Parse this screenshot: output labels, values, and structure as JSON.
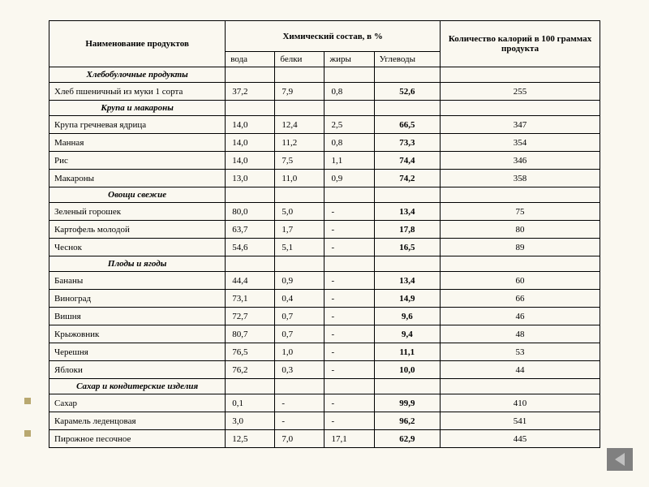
{
  "headers": {
    "col1": "Наименование продуктов",
    "col2": "Химический состав, в %",
    "col3": "Количество калорий в 100 граммах продукта",
    "sub1": "вода",
    "sub2": "белки",
    "sub3": "жиры",
    "sub4": "Углеводы"
  },
  "categories": [
    {
      "name": "Хлебобулочные продукты",
      "rows": [
        {
          "name": "Хлеб пшеничный из муки 1 сорта",
          "water": "37,2",
          "protein": "7,9",
          "fat": "0,8",
          "carbs": "52,6",
          "cal": "255"
        }
      ]
    },
    {
      "name": "Крупа и макароны",
      "rows": [
        {
          "name": "Крупа гречневая ядрица",
          "water": "14,0",
          "protein": "12,4",
          "fat": "2,5",
          "carbs": "66,5",
          "cal": "347"
        },
        {
          "name": "Манная",
          "water": "14,0",
          "protein": "11,2",
          "fat": "0,8",
          "carbs": "73,3",
          "cal": "354"
        },
        {
          "name": "Рис",
          "water": "14,0",
          "protein": "7,5",
          "fat": "1,1",
          "carbs": "74,4",
          "cal": "346"
        },
        {
          "name": "Макароны",
          "water": "13,0",
          "protein": "11,0",
          "fat": "0,9",
          "carbs": "74,2",
          "cal": "358"
        }
      ]
    },
    {
      "name": "Овощи свежие",
      "rows": [
        {
          "name": "Зеленый горошек",
          "water": "80,0",
          "protein": "5,0",
          "fat": "-",
          "carbs": "13,4",
          "cal": "75"
        },
        {
          "name": "Картофель молодой",
          "water": "63,7",
          "protein": "1,7",
          "fat": "-",
          "carbs": "17,8",
          "cal": "80"
        },
        {
          "name": "Чеснок",
          "water": "54,6",
          "protein": "5,1",
          "fat": "-",
          "carbs": "16,5",
          "cal": "89"
        }
      ]
    },
    {
      "name": "Плоды и ягоды",
      "rows": [
        {
          "name": "Бананы",
          "water": "44,4",
          "protein": "0,9",
          "fat": "-",
          "carbs": "13,4",
          "cal": "60"
        },
        {
          "name": "Виноград",
          "water": "73,1",
          "protein": "0,4",
          "fat": "-",
          "carbs": "14,9",
          "cal": "66"
        },
        {
          "name": "Вишня",
          "water": "72,7",
          "protein": "0,7",
          "fat": "-",
          "carbs": "9,6",
          "cal": "46"
        },
        {
          "name": "Крыжовник",
          "water": "80,7",
          "protein": "0,7",
          "fat": "-",
          "carbs": "9,4",
          "cal": "48"
        },
        {
          "name": "Черешня",
          "water": "76,5",
          "protein": "1,0",
          "fat": "-",
          "carbs": "11,1",
          "cal": "53"
        },
        {
          "name": "Яблоки",
          "water": "76,2",
          "protein": "0,3",
          "fat": "-",
          "carbs": "10,0",
          "cal": "44"
        }
      ]
    },
    {
      "name": "Сахар и кондитерские изделия",
      "rows": [
        {
          "name": "Сахар",
          "water": "0,1",
          "protein": "-",
          "fat": "-",
          "carbs": "99,9",
          "cal": "410"
        },
        {
          "name": "Карамель леденцовая",
          "water": "3,0",
          "protein": "-",
          "fat": "-",
          "carbs": "96,2",
          "cal": "541"
        },
        {
          "name": "Пирожное песочное",
          "water": "12,5",
          "protein": "7,0",
          "fat": "17,1",
          "carbs": "62,9",
          "cal": "445"
        }
      ]
    }
  ],
  "colors": {
    "background": "#faf8f0",
    "border": "#000000",
    "text": "#000000",
    "bullet": "#b8a870"
  },
  "column_widths": {
    "name": "32%",
    "water": "9%",
    "protein": "9%",
    "fat": "9%",
    "carbs": "12%",
    "cal": "29%"
  }
}
